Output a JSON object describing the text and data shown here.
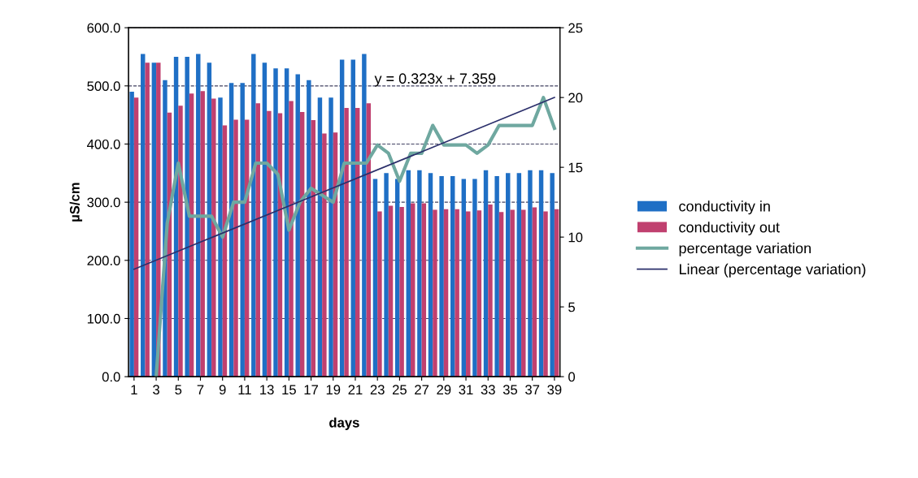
{
  "chart_data": {
    "type": "bar",
    "xlabel": "days",
    "ylabel": "µS/cm",
    "x": [
      1,
      2,
      3,
      4,
      5,
      6,
      7,
      8,
      9,
      10,
      11,
      12,
      13,
      14,
      15,
      16,
      17,
      18,
      19,
      20,
      21,
      22,
      23,
      24,
      25,
      26,
      27,
      28,
      29,
      30,
      31,
      32,
      33,
      34,
      35,
      36,
      37,
      38,
      39
    ],
    "xlim": [
      0.5,
      39.5
    ],
    "xticks": [
      1,
      3,
      5,
      7,
      9,
      11,
      13,
      15,
      17,
      19,
      21,
      23,
      25,
      27,
      29,
      31,
      33,
      35,
      37,
      39
    ],
    "ylim": [
      0,
      600
    ],
    "yticks": [
      {
        "value": 0,
        "label": "0.0"
      },
      {
        "value": 100,
        "label": "100.0"
      },
      {
        "value": 200,
        "label": "200.0"
      },
      {
        "value": 300,
        "label": "300.0"
      },
      {
        "value": 400,
        "label": "400.0"
      },
      {
        "value": 500,
        "label": "500.0"
      },
      {
        "value": 600,
        "label": "600.0"
      }
    ],
    "y2lim": [
      0,
      25
    ],
    "y2ticks": [
      0,
      5,
      10,
      15,
      20,
      25
    ],
    "grid": "y",
    "legend": "right",
    "annotations": [
      "y = 0.323x + 7.359"
    ],
    "series": [
      {
        "name": "conductivity in",
        "color": "#1f6fc5",
        "values": [
          490,
          555,
          540,
          510,
          550,
          550,
          555,
          540,
          480,
          505,
          505,
          555,
          540,
          530,
          530,
          520,
          510,
          480,
          480,
          545,
          545,
          555,
          340,
          350,
          340,
          355,
          355,
          350,
          345,
          345,
          340,
          340,
          355,
          345,
          350,
          350,
          355,
          355,
          350
        ]
      },
      {
        "name": "conductivity out",
        "color": "#c0406f",
        "values": [
          480,
          540,
          540,
          454,
          466,
          487,
          491,
          478,
          432,
          442,
          442,
          470,
          457,
          453,
          474,
          455,
          441,
          418,
          420,
          462,
          462,
          470,
          284,
          294,
          292,
          298,
          298,
          287,
          288,
          288,
          284,
          286,
          296,
          283,
          287,
          287,
          291,
          284,
          288
        ]
      },
      {
        "name": "percentage variation",
        "type": "line",
        "axis": "y2",
        "color": "#6fa8a0",
        "values": [
          null,
          null,
          0,
          11,
          15.3,
          11.5,
          11.5,
          11.5,
          10,
          12.5,
          12.5,
          15.3,
          15.3,
          14.5,
          10.5,
          12.5,
          13.5,
          13,
          12.5,
          15.3,
          15.3,
          15.3,
          16.6,
          16,
          14,
          16,
          16,
          18,
          16.6,
          16.6,
          16.6,
          16,
          16.6,
          18,
          18,
          18,
          18,
          20,
          17.8
        ]
      },
      {
        "name": "Linear (percentage variation)",
        "type": "line",
        "axis": "y2",
        "color": "#2b2f6b",
        "x": [
          1,
          39
        ],
        "values": [
          7.7,
          20.0
        ]
      }
    ]
  }
}
